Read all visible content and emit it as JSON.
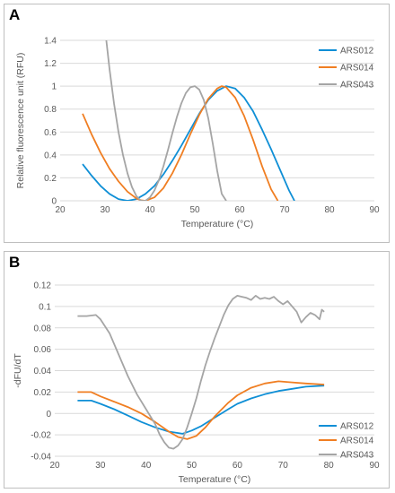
{
  "chart_data": [
    {
      "panel": "A",
      "type": "line",
      "title": "",
      "xlabel": "Temperature (°C)",
      "ylabel": "Relative fluorescence unit (RFU)",
      "xlim": [
        20,
        90
      ],
      "ylim": [
        0,
        1.4
      ],
      "xticks": [
        "20",
        "30",
        "40",
        "50",
        "60",
        "70",
        "80",
        "90"
      ],
      "yticks": [
        "0",
        "0.2",
        "0.4",
        "0.6",
        "0.8",
        "1",
        "1.2",
        "1.4"
      ],
      "grid": "horizontal",
      "legend_position": "right",
      "series": [
        {
          "name": "ARS012",
          "color": "#0f8fd6",
          "x": [
            25,
            27,
            29,
            31,
            33,
            35,
            37,
            39,
            41,
            43,
            45,
            47,
            49,
            51,
            53,
            55,
            57,
            59,
            61,
            63,
            65,
            67,
            69,
            71,
            72.2
          ],
          "y": [
            0.32,
            0.22,
            0.13,
            0.06,
            0.015,
            0.0,
            0.015,
            0.06,
            0.13,
            0.23,
            0.35,
            0.48,
            0.62,
            0.76,
            0.88,
            0.96,
            1.0,
            0.98,
            0.9,
            0.78,
            0.62,
            0.45,
            0.27,
            0.09,
            0.0
          ]
        },
        {
          "name": "ARS014",
          "color": "#f07e22",
          "x": [
            25,
            27,
            29,
            31,
            33,
            35,
            37,
            38,
            39,
            41,
            43,
            45,
            47,
            49,
            51,
            53,
            55,
            56,
            57,
            59,
            61,
            63,
            65,
            67,
            68.5
          ],
          "y": [
            0.76,
            0.58,
            0.42,
            0.28,
            0.17,
            0.08,
            0.02,
            0.005,
            0.0,
            0.03,
            0.11,
            0.24,
            0.4,
            0.58,
            0.75,
            0.89,
            0.98,
            1.0,
            0.99,
            0.9,
            0.74,
            0.53,
            0.3,
            0.1,
            0.0
          ]
        },
        {
          "name": "ARS043",
          "color": "#a5a5a5",
          "x": [
            30,
            31,
            32,
            33,
            34,
            35,
            36,
            37,
            38,
            39,
            40,
            41,
            42,
            43,
            44,
            45,
            46,
            47,
            48,
            49,
            50,
            51,
            52,
            53,
            54,
            55,
            56,
            57
          ],
          "y": [
            1.5,
            1.15,
            0.85,
            0.6,
            0.4,
            0.24,
            0.12,
            0.04,
            0.0,
            0.0,
            0.03,
            0.09,
            0.18,
            0.3,
            0.44,
            0.59,
            0.73,
            0.85,
            0.94,
            0.99,
            1.0,
            0.97,
            0.88,
            0.72,
            0.5,
            0.26,
            0.06,
            0.0
          ]
        }
      ]
    },
    {
      "panel": "B",
      "type": "line",
      "title": "",
      "xlabel": "Temperature (°C)",
      "ylabel": "-dFU/dT",
      "xlim": [
        20,
        90
      ],
      "ylim": [
        -0.04,
        0.12
      ],
      "xticks": [
        "20",
        "30",
        "40",
        "50",
        "60",
        "70",
        "80",
        "90"
      ],
      "yticks": [
        "-0.04",
        "-0.02",
        "0",
        "0.02",
        "0.04",
        "0.06",
        "0.08",
        "0.1",
        "0.12"
      ],
      "grid": "horizontal",
      "legend_position": "bottom-right",
      "series": [
        {
          "name": "ARS012",
          "color": "#0f8fd6",
          "x": [
            25,
            28,
            30,
            33,
            36,
            39,
            42,
            45,
            48,
            50,
            52,
            55,
            58,
            60,
            63,
            66,
            69,
            72,
            75,
            79
          ],
          "y": [
            0.012,
            0.012,
            0.009,
            0.004,
            -0.002,
            -0.008,
            -0.013,
            -0.017,
            -0.019,
            -0.016,
            -0.012,
            -0.004,
            0.004,
            0.009,
            0.014,
            0.018,
            0.021,
            0.023,
            0.025,
            0.026
          ]
        },
        {
          "name": "ARS014",
          "color": "#f07e22",
          "x": [
            25,
            28,
            30,
            33,
            36,
            39,
            42,
            45,
            47,
            49,
            51,
            53,
            55,
            58,
            60,
            63,
            66,
            69,
            72,
            75,
            79
          ],
          "y": [
            0.02,
            0.02,
            0.016,
            0.011,
            0.006,
            0.0,
            -0.008,
            -0.017,
            -0.022,
            -0.024,
            -0.021,
            -0.013,
            -0.003,
            0.01,
            0.017,
            0.024,
            0.028,
            0.03,
            0.029,
            0.028,
            0.027
          ]
        },
        {
          "name": "ARS043",
          "color": "#a5a5a5",
          "x": [
            25,
            27,
            29,
            30,
            32,
            34,
            36,
            38,
            40,
            42,
            43,
            44,
            45,
            46,
            47,
            48,
            49,
            50,
            51,
            52,
            53,
            54,
            55,
            56,
            57,
            58,
            59,
            60,
            61,
            62,
            63,
            64,
            65,
            66,
            67,
            68,
            69,
            70,
            71,
            72,
            73,
            74,
            75,
            76,
            77,
            78,
            78.5,
            79
          ],
          "y": [
            0.091,
            0.091,
            0.092,
            0.088,
            0.075,
            0.055,
            0.035,
            0.018,
            0.004,
            -0.01,
            -0.02,
            -0.027,
            -0.032,
            -0.033,
            -0.03,
            -0.024,
            -0.013,
            0.0,
            0.014,
            0.03,
            0.045,
            0.058,
            0.07,
            0.081,
            0.092,
            0.101,
            0.107,
            0.11,
            0.109,
            0.108,
            0.106,
            0.11,
            0.107,
            0.108,
            0.107,
            0.109,
            0.105,
            0.102,
            0.105,
            0.1,
            0.095,
            0.085,
            0.09,
            0.094,
            0.092,
            0.088,
            0.097,
            0.095
          ]
        }
      ]
    }
  ],
  "panels": {
    "a_label": "A",
    "b_label": "B"
  }
}
